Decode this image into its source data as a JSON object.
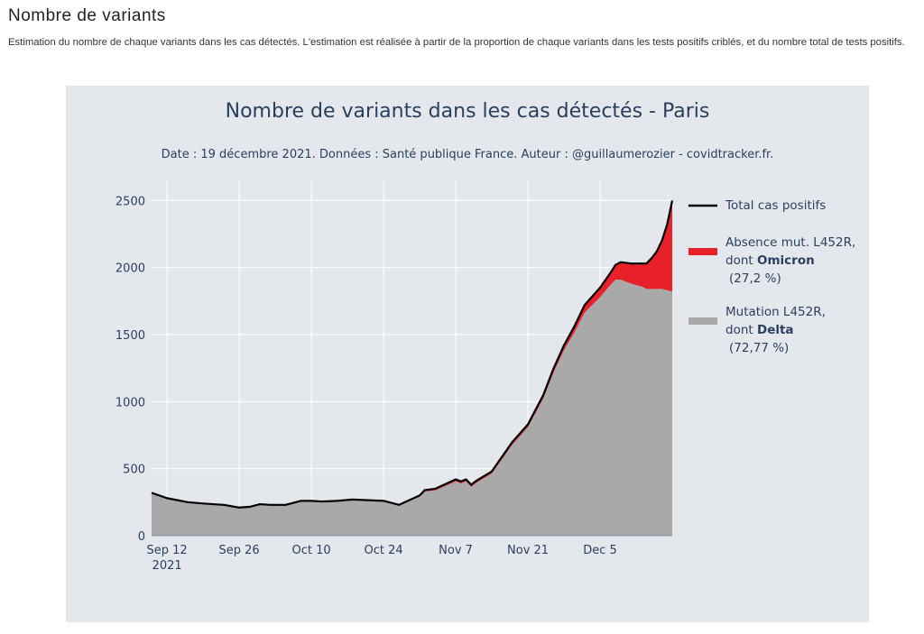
{
  "page": {
    "title": "Nombre de variants",
    "description": "Estimation du nombre de chaque variants dans les cas détectés. L'estimation est réalisée à partir de la proportion de chaque variants dans les tests positifs criblés, et du nombre total de tests positifs."
  },
  "colors": {
    "background": "#e4e8ed",
    "total_line": "#000000",
    "absence_l452r": "#e8202a",
    "mutation_l452r": "#a9a9a9",
    "grid": "#ffffff",
    "text": "#2a3f5f"
  },
  "chart_data": {
    "type": "area",
    "title": "Nombre de variants dans les cas détectés - Paris",
    "subtitle": "Date : 19 décembre 2021. Données : Santé publique France. Auteur : @guillaumerozier - covidtracker.fr.",
    "xlabel": "",
    "ylabel": "",
    "x_range": [
      "2021-09-09",
      "2021-12-19"
    ],
    "ylim": [
      0,
      2650
    ],
    "yticks": [
      0,
      500,
      1000,
      1500,
      2000,
      2500
    ],
    "xticks": [
      {
        "date": "2021-09-12",
        "label": "Sep 12",
        "sublabel": "2021"
      },
      {
        "date": "2021-09-26",
        "label": "Sep 26"
      },
      {
        "date": "2021-10-10",
        "label": "Oct 10"
      },
      {
        "date": "2021-10-24",
        "label": "Oct 24"
      },
      {
        "date": "2021-11-07",
        "label": "Nov 7"
      },
      {
        "date": "2021-11-21",
        "label": "Nov 21"
      },
      {
        "date": "2021-12-05",
        "label": "Dec 5"
      }
    ],
    "grid": true,
    "legend_position": "right",
    "legend": [
      {
        "name": "Total cas positifs",
        "lines": [
          "Total cas positifs"
        ],
        "color": "#000000",
        "kind": "line"
      },
      {
        "name": "Absence mut. L452R, dont Omicron (27,2 %)",
        "lines": [
          "Absence mut. L452R,",
          "dont |Omicron|",
          "(27,2 %)"
        ],
        "color": "#e8202a",
        "kind": "area"
      },
      {
        "name": "Mutation L452R, dont Delta (72,77 %)",
        "lines": [
          "Mutation L452R,",
          "dont |Delta|",
          "(72,77 %)"
        ],
        "color": "#a9a9a9",
        "kind": "area"
      }
    ],
    "x": [
      "2021-09-09",
      "2021-09-12",
      "2021-09-16",
      "2021-09-19",
      "2021-09-23",
      "2021-09-26",
      "2021-09-28",
      "2021-09-30",
      "2021-10-02",
      "2021-10-05",
      "2021-10-08",
      "2021-10-10",
      "2021-10-12",
      "2021-10-15",
      "2021-10-18",
      "2021-10-21",
      "2021-10-24",
      "2021-10-27",
      "2021-10-31",
      "2021-11-01",
      "2021-11-03",
      "2021-11-07",
      "2021-11-08",
      "2021-11-09",
      "2021-11-10",
      "2021-11-11",
      "2021-11-14",
      "2021-11-18",
      "2021-11-21",
      "2021-11-24",
      "2021-11-26",
      "2021-11-28",
      "2021-11-30",
      "2021-12-02",
      "2021-12-05",
      "2021-12-07",
      "2021-12-08",
      "2021-12-09",
      "2021-12-11",
      "2021-12-13",
      "2021-12-14",
      "2021-12-15",
      "2021-12-16",
      "2021-12-17",
      "2021-12-18",
      "2021-12-19"
    ],
    "series": [
      {
        "name": "Total cas positifs",
        "values": [
          320,
          280,
          250,
          240,
          230,
          210,
          215,
          235,
          230,
          230,
          260,
          260,
          255,
          260,
          270,
          265,
          260,
          230,
          300,
          340,
          350,
          420,
          405,
          420,
          380,
          410,
          480,
          700,
          830,
          1050,
          1250,
          1420,
          1560,
          1720,
          1850,
          1960,
          2020,
          2040,
          2030,
          2030,
          2030,
          2070,
          2120,
          2200,
          2320,
          2500
        ]
      },
      {
        "name": "Absence mut. L452R, dont Omicron",
        "values": [
          5,
          5,
          5,
          5,
          5,
          5,
          5,
          5,
          5,
          5,
          5,
          5,
          5,
          5,
          5,
          5,
          5,
          5,
          8,
          10,
          12,
          15,
          15,
          15,
          15,
          15,
          15,
          20,
          20,
          25,
          30,
          35,
          45,
          55,
          70,
          90,
          110,
          130,
          150,
          170,
          190,
          230,
          280,
          360,
          490,
          680
        ]
      },
      {
        "name": "Mutation L452R, dont Delta",
        "values": [
          315,
          275,
          245,
          235,
          225,
          205,
          210,
          230,
          225,
          225,
          255,
          255,
          250,
          255,
          265,
          260,
          255,
          225,
          292,
          330,
          338,
          405,
          390,
          405,
          365,
          395,
          465,
          680,
          810,
          1025,
          1220,
          1385,
          1515,
          1665,
          1780,
          1870,
          1910,
          1910,
          1880,
          1860,
          1840,
          1840,
          1840,
          1840,
          1830,
          1820
        ]
      }
    ]
  }
}
